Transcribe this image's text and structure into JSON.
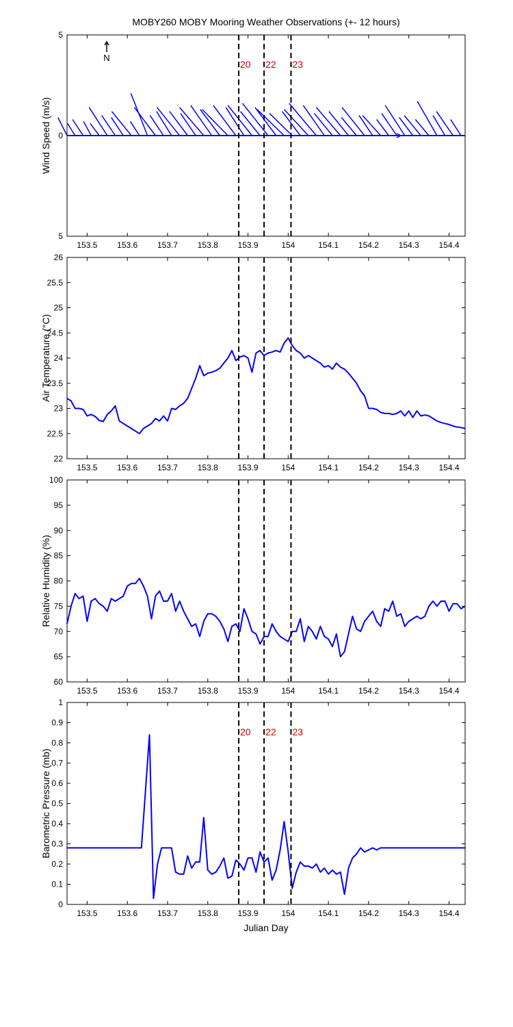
{
  "figure": {
    "title": "MOBY260 MOBY Mooring Weather Observations (+- 12 hours)",
    "xlabel": "Julian Day"
  },
  "colors": {
    "series": "#0000ff",
    "marker_label": "#cc0000",
    "axis": "#000000"
  },
  "chart_data": [
    {
      "id": "wind",
      "type": "line",
      "ylabel": "Wind Speed (m/s)",
      "xlim": [
        153.45,
        154.44
      ],
      "ylim": [
        -5,
        5
      ],
      "ytick_labels": [
        "5",
        "0",
        "5"
      ],
      "xticks": [
        153.5,
        153.6,
        153.7,
        153.8,
        153.9,
        154,
        154.1,
        154.2,
        154.3,
        154.4
      ],
      "xtick_labels": [
        "153.5",
        "153.6",
        "153.7",
        "153.8",
        "153.9",
        "154",
        "154.1",
        "154.2",
        "154.3",
        "154.4"
      ],
      "north_label": "N",
      "vlines": [
        153.877,
        153.94,
        154.007
      ],
      "vline_labels": [
        "20",
        "22",
        "23"
      ],
      "wind_vectors": [
        [
          153.45,
          -0.6,
          0.9
        ],
        [
          153.47,
          -0.5,
          0.6
        ],
        [
          153.49,
          -0.7,
          0.8
        ],
        [
          153.51,
          -0.5,
          0.7
        ],
        [
          153.53,
          -0.6,
          0.6
        ],
        [
          153.55,
          -1.2,
          1.4
        ],
        [
          153.57,
          -0.9,
          1.0
        ],
        [
          153.59,
          -0.8,
          0.9
        ],
        [
          153.61,
          -1.3,
          1.2
        ],
        [
          153.63,
          -0.6,
          0.7
        ],
        [
          153.65,
          -1.1,
          2.1
        ],
        [
          153.67,
          -1.4,
          1.4
        ],
        [
          153.69,
          -0.9,
          1.0
        ],
        [
          153.71,
          -1.0,
          1.2
        ],
        [
          153.73,
          -1.5,
          1.4
        ],
        [
          153.75,
          -1.2,
          1.2
        ],
        [
          153.77,
          -1.0,
          1.1
        ],
        [
          153.79,
          -1.6,
          1.4
        ],
        [
          153.81,
          -1.4,
          1.5
        ],
        [
          153.83,
          -1.3,
          1.3
        ],
        [
          153.85,
          -1.7,
          1.3
        ],
        [
          153.87,
          -1.5,
          1.5
        ],
        [
          153.89,
          -1.2,
          1.4
        ],
        [
          153.91,
          -1.6,
          1.5
        ],
        [
          153.93,
          -1.3,
          1.2
        ],
        [
          153.95,
          -1.7,
          1.6
        ],
        [
          153.97,
          -1.4,
          1.4
        ],
        [
          153.99,
          -1.8,
          1.3
        ],
        [
          154.01,
          -1.5,
          1.1
        ],
        [
          154.03,
          -1.2,
          1.2
        ],
        [
          154.05,
          -1.6,
          1.3
        ],
        [
          154.07,
          -1.8,
          1.6
        ],
        [
          154.09,
          -1.4,
          1.5
        ],
        [
          154.11,
          -1.2,
          1.1
        ],
        [
          154.13,
          -1.6,
          1.4
        ],
        [
          154.15,
          -1.3,
          1.2
        ],
        [
          154.17,
          -1.0,
          0.9
        ],
        [
          154.19,
          -1.5,
          1.4
        ],
        [
          154.21,
          -0.9,
          1.0
        ],
        [
          154.23,
          -1.2,
          1.0
        ],
        [
          154.25,
          -0.8,
          0.8
        ],
        [
          154.27,
          -1.0,
          1.1
        ],
        [
          154.29,
          -1.3,
          1.5
        ],
        [
          154.31,
          -0.9,
          0.9
        ],
        [
          154.33,
          -1.1,
          1.0
        ],
        [
          154.35,
          -0.9,
          0.8
        ],
        [
          154.37,
          -1.3,
          1.7
        ],
        [
          154.39,
          -0.8,
          1.0
        ],
        [
          154.41,
          -1.1,
          1.2
        ],
        [
          154.43,
          -0.7,
          0.8
        ]
      ]
    },
    {
      "id": "airtemp",
      "type": "line",
      "ylabel": "Air Temperature (°C)",
      "xlim": [
        153.45,
        154.44
      ],
      "ylim": [
        22,
        26
      ],
      "yticks": [
        22,
        22.5,
        23,
        23.5,
        24,
        24.5,
        25,
        25.5,
        26
      ],
      "ytick_labels": [
        "22",
        "22.5",
        "23",
        "23.5",
        "24",
        "24.5",
        "25",
        "25.5",
        "26"
      ],
      "xticks": [
        153.5,
        153.6,
        153.7,
        153.8,
        153.9,
        154,
        154.1,
        154.2,
        154.3,
        154.4
      ],
      "xtick_labels": [
        "153.5",
        "153.6",
        "153.7",
        "153.8",
        "153.9",
        "154",
        "154.1",
        "154.2",
        "154.3",
        "154.4"
      ],
      "vlines": [
        153.877,
        153.94,
        154.007
      ],
      "x": [
        153.45,
        153.46,
        153.47,
        153.48,
        153.49,
        153.5,
        153.51,
        153.52,
        153.53,
        153.54,
        153.55,
        153.56,
        153.57,
        153.58,
        153.59,
        153.6,
        153.61,
        153.62,
        153.63,
        153.64,
        153.65,
        153.66,
        153.67,
        153.68,
        153.69,
        153.7,
        153.71,
        153.72,
        153.73,
        153.74,
        153.75,
        153.76,
        153.77,
        153.78,
        153.79,
        153.8,
        153.81,
        153.82,
        153.83,
        153.84,
        153.85,
        153.86,
        153.87,
        153.88,
        153.89,
        153.9,
        153.91,
        153.92,
        153.93,
        153.94,
        153.95,
        153.96,
        153.97,
        153.98,
        153.99,
        154.0,
        154.01,
        154.02,
        154.03,
        154.04,
        154.05,
        154.06,
        154.07,
        154.08,
        154.09,
        154.1,
        154.11,
        154.12,
        154.13,
        154.14,
        154.15,
        154.16,
        154.17,
        154.18,
        154.19,
        154.2,
        154.21,
        154.22,
        154.23,
        154.24,
        154.25,
        154.26,
        154.27,
        154.28,
        154.29,
        154.3,
        154.31,
        154.32,
        154.33,
        154.34,
        154.35,
        154.36,
        154.37,
        154.38,
        154.39,
        154.4,
        154.41,
        154.42,
        154.43,
        154.44
      ],
      "values": [
        23.2,
        23.15,
        23.0,
        23.0,
        22.98,
        22.85,
        22.88,
        22.84,
        22.76,
        22.74,
        22.88,
        22.95,
        23.05,
        22.75,
        22.7,
        22.65,
        22.6,
        22.55,
        22.5,
        22.6,
        22.65,
        22.7,
        22.8,
        22.75,
        22.85,
        22.75,
        23.0,
        22.98,
        23.05,
        23.1,
        23.2,
        23.4,
        23.6,
        23.85,
        23.65,
        23.7,
        23.72,
        23.75,
        23.8,
        23.9,
        24.0,
        24.15,
        23.95,
        24.02,
        24.05,
        24.0,
        23.72,
        24.1,
        24.15,
        24.05,
        24.1,
        24.12,
        24.15,
        24.12,
        24.3,
        24.4,
        24.25,
        24.15,
        24.1,
        24.0,
        24.05,
        24.0,
        23.95,
        23.9,
        23.82,
        23.85,
        23.78,
        23.9,
        23.82,
        23.78,
        23.7,
        23.6,
        23.5,
        23.35,
        23.25,
        23.0,
        23.0,
        22.98,
        22.92,
        22.9,
        22.9,
        22.88,
        22.9,
        22.95,
        22.85,
        22.95,
        22.82,
        22.95,
        22.85,
        22.87,
        22.85,
        22.8,
        22.75,
        22.72,
        22.7,
        22.68,
        22.65,
        22.63,
        22.62,
        22.6
      ]
    },
    {
      "id": "humidity",
      "type": "line",
      "ylabel": "Relative Humidity (%)",
      "xlim": [
        153.45,
        154.44
      ],
      "ylim": [
        60,
        100
      ],
      "yticks": [
        60,
        65,
        70,
        75,
        80,
        85,
        90,
        95,
        100
      ],
      "ytick_labels": [
        "60",
        "65",
        "70",
        "75",
        "80",
        "85",
        "90",
        "95",
        "100"
      ],
      "xticks": [
        153.5,
        153.6,
        153.7,
        153.8,
        153.9,
        154,
        154.1,
        154.2,
        154.3,
        154.4
      ],
      "xtick_labels": [
        "153.5",
        "153.6",
        "153.7",
        "153.8",
        "153.9",
        "154",
        "154.1",
        "154.2",
        "154.3",
        "154.4"
      ],
      "vlines": [
        153.877,
        153.94,
        154.007
      ],
      "x": [
        153.45,
        153.46,
        153.47,
        153.48,
        153.49,
        153.5,
        153.51,
        153.52,
        153.53,
        153.54,
        153.55,
        153.56,
        153.57,
        153.58,
        153.59,
        153.6,
        153.61,
        153.62,
        153.63,
        153.64,
        153.65,
        153.66,
        153.67,
        153.68,
        153.69,
        153.7,
        153.71,
        153.72,
        153.73,
        153.74,
        153.75,
        153.76,
        153.77,
        153.78,
        153.79,
        153.8,
        153.81,
        153.82,
        153.83,
        153.84,
        153.85,
        153.86,
        153.87,
        153.88,
        153.89,
        153.9,
        153.91,
        153.92,
        153.93,
        153.94,
        153.95,
        153.96,
        153.97,
        153.98,
        153.99,
        154.0,
        154.01,
        154.02,
        154.03,
        154.04,
        154.05,
        154.06,
        154.07,
        154.08,
        154.09,
        154.1,
        154.11,
        154.12,
        154.13,
        154.14,
        154.15,
        154.16,
        154.17,
        154.18,
        154.19,
        154.2,
        154.21,
        154.22,
        154.23,
        154.24,
        154.25,
        154.26,
        154.27,
        154.28,
        154.29,
        154.3,
        154.31,
        154.32,
        154.33,
        154.34,
        154.35,
        154.36,
        154.37,
        154.38,
        154.39,
        154.4,
        154.41,
        154.42,
        154.43,
        154.44
      ],
      "values": [
        71.5,
        75,
        77.5,
        76.5,
        77,
        72,
        76,
        76.5,
        75.5,
        75,
        74,
        76.5,
        76,
        76.5,
        77,
        79,
        79.5,
        79.5,
        80.5,
        79,
        77,
        72.5,
        77,
        78,
        76,
        76,
        77.5,
        74,
        76,
        74,
        72.5,
        71,
        71.5,
        69,
        72,
        73.5,
        73.5,
        73,
        72,
        70.5,
        68,
        71,
        71.5,
        70,
        74.5,
        72.5,
        70,
        69.5,
        67.5,
        69,
        69,
        71.5,
        70,
        69,
        68.5,
        68,
        70,
        70,
        72.5,
        68,
        71,
        70,
        68.5,
        71,
        69,
        68.5,
        67,
        69.5,
        65,
        66,
        69.5,
        73,
        70.5,
        70,
        72,
        73,
        74,
        72,
        71,
        74.5,
        74,
        76,
        73,
        73.5,
        71,
        72,
        72.5,
        73,
        72.5,
        73,
        75,
        76,
        75,
        76,
        76,
        74,
        75.5,
        75.5,
        74.5,
        75
      ]
    },
    {
      "id": "pressure",
      "type": "line",
      "ylabel": "Barometric Pressure (mb)",
      "xlim": [
        153.45,
        154.44
      ],
      "ylim": [
        0,
        1
      ],
      "yticks": [
        0,
        0.1,
        0.2,
        0.3,
        0.4,
        0.5,
        0.6,
        0.7,
        0.8,
        0.9,
        1
      ],
      "ytick_labels": [
        "0",
        "0.1",
        "0.2",
        "0.3",
        "0.4",
        "0.5",
        "0.6",
        "0.7",
        "0.8",
        "0.9",
        "1"
      ],
      "xticks": [
        153.5,
        153.6,
        153.7,
        153.8,
        153.9,
        154,
        154.1,
        154.2,
        154.3,
        154.4
      ],
      "xtick_labels": [
        "153.5",
        "153.6",
        "153.7",
        "153.8",
        "153.9",
        "154",
        "154.1",
        "154.2",
        "154.3",
        "154.4"
      ],
      "vlines": [
        153.877,
        153.94,
        154.007
      ],
      "vline_labels": [
        "20",
        "22",
        "23"
      ],
      "x": [
        153.45,
        153.635,
        153.655,
        153.665,
        153.675,
        153.685,
        153.7,
        153.71,
        153.72,
        153.73,
        153.74,
        153.75,
        153.76,
        153.77,
        153.78,
        153.79,
        153.8,
        153.81,
        153.82,
        153.83,
        153.84,
        153.85,
        153.86,
        153.87,
        153.88,
        153.89,
        153.9,
        153.91,
        153.92,
        153.93,
        153.94,
        153.95,
        153.96,
        153.97,
        153.98,
        153.99,
        154.0,
        154.01,
        154.02,
        154.03,
        154.04,
        154.05,
        154.06,
        154.07,
        154.08,
        154.09,
        154.1,
        154.11,
        154.12,
        154.13,
        154.14,
        154.15,
        154.16,
        154.17,
        154.18,
        154.19,
        154.2,
        154.21,
        154.22,
        154.23,
        154.24,
        154.25,
        154.26,
        154.44
      ],
      "values": [
        0.28,
        0.28,
        0.84,
        0.03,
        0.2,
        0.28,
        0.28,
        0.28,
        0.16,
        0.15,
        0.15,
        0.24,
        0.18,
        0.21,
        0.21,
        0.43,
        0.17,
        0.15,
        0.16,
        0.19,
        0.23,
        0.13,
        0.14,
        0.22,
        0.2,
        0.17,
        0.23,
        0.23,
        0.16,
        0.26,
        0.21,
        0.23,
        0.12,
        0.17,
        0.27,
        0.41,
        0.26,
        0.08,
        0.16,
        0.21,
        0.19,
        0.19,
        0.18,
        0.2,
        0.16,
        0.18,
        0.15,
        0.17,
        0.15,
        0.16,
        0.05,
        0.18,
        0.23,
        0.25,
        0.28,
        0.26,
        0.27,
        0.28,
        0.27,
        0.28,
        0.28,
        0.28,
        0.28,
        0.28
      ]
    }
  ]
}
